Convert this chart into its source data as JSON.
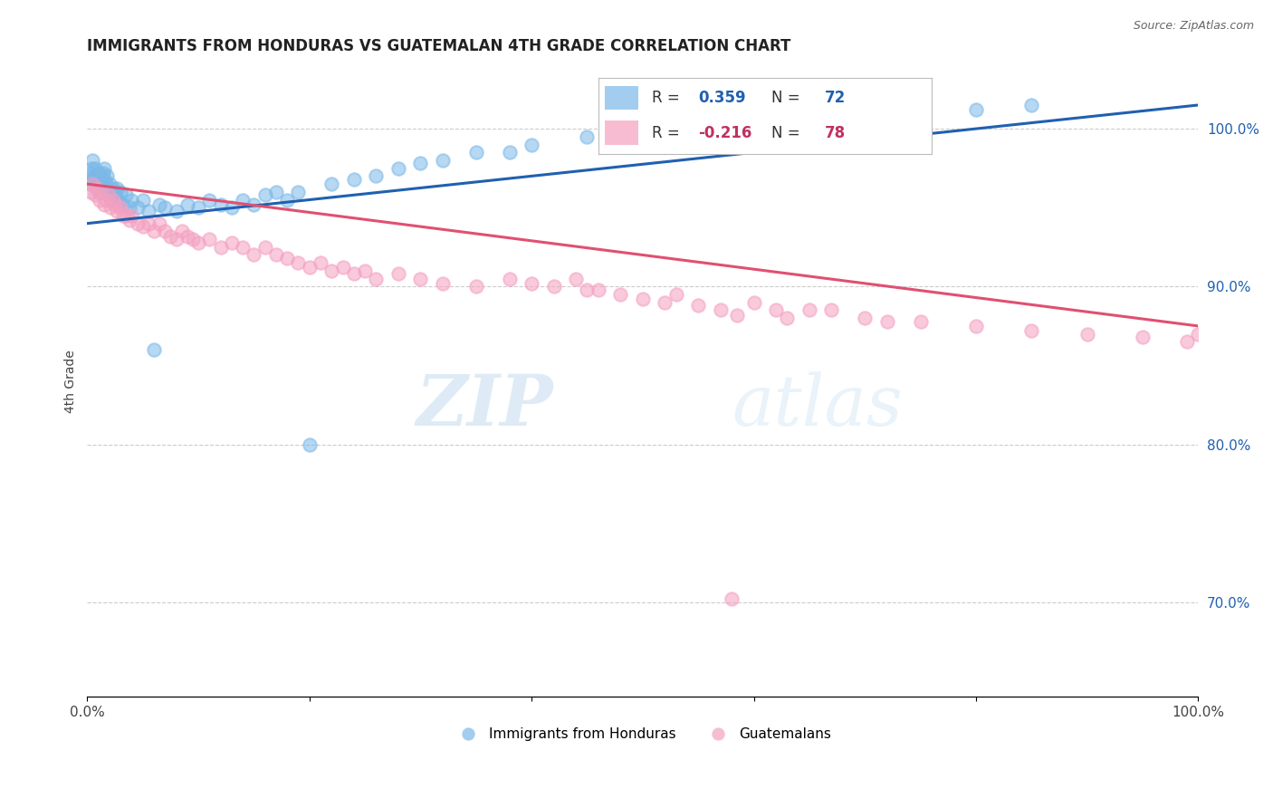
{
  "title": "IMMIGRANTS FROM HONDURAS VS GUATEMALAN 4TH GRADE CORRELATION CHART",
  "source": "Source: ZipAtlas.com",
  "ylabel": "4th Grade",
  "xlim": [
    0.0,
    100.0
  ],
  "ylim": [
    64.0,
    104.0
  ],
  "ytick_right_labels": [
    "70.0%",
    "80.0%",
    "90.0%",
    "100.0%"
  ],
  "ytick_right_values": [
    70.0,
    80.0,
    90.0,
    100.0
  ],
  "blue_R": 0.359,
  "blue_N": 72,
  "pink_R": -0.216,
  "pink_N": 78,
  "blue_color": "#7bb8e8",
  "pink_color": "#f4a0c0",
  "blue_line_color": "#2060b0",
  "pink_line_color": "#e05070",
  "blue_line_start_y": 94.0,
  "blue_line_end_y": 101.5,
  "pink_line_start_y": 96.5,
  "pink_line_end_y": 87.5,
  "legend_blue_label": "Immigrants from Honduras",
  "legend_pink_label": "Guatemalans",
  "blue_x": [
    0.2,
    0.3,
    0.4,
    0.5,
    0.5,
    0.6,
    0.7,
    0.8,
    0.9,
    1.0,
    1.0,
    1.1,
    1.2,
    1.3,
    1.4,
    1.5,
    1.5,
    1.6,
    1.7,
    1.8,
    1.9,
    2.0,
    2.1,
    2.2,
    2.3,
    2.4,
    2.5,
    2.6,
    2.7,
    2.8,
    3.0,
    3.2,
    3.5,
    3.8,
    4.0,
    4.5,
    5.0,
    5.5,
    6.0,
    6.5,
    7.0,
    8.0,
    9.0,
    10.0,
    11.0,
    12.0,
    13.0,
    14.0,
    15.0,
    16.0,
    17.0,
    18.0,
    19.0,
    20.0,
    22.0,
    24.0,
    26.0,
    28.0,
    30.0,
    32.0,
    35.0,
    38.0,
    40.0,
    45.0,
    50.0,
    55.0,
    60.0,
    65.0,
    70.0,
    75.0,
    80.0,
    85.0
  ],
  "blue_y": [
    96.5,
    97.2,
    97.5,
    98.0,
    96.8,
    97.0,
    97.5,
    96.5,
    97.0,
    97.2,
    96.0,
    96.8,
    97.0,
    96.5,
    97.2,
    96.8,
    97.5,
    96.2,
    96.5,
    97.0,
    95.8,
    96.5,
    96.0,
    95.5,
    96.2,
    95.8,
    96.0,
    95.5,
    96.2,
    95.5,
    96.0,
    95.2,
    95.8,
    95.0,
    95.5,
    95.0,
    95.5,
    94.8,
    86.0,
    95.2,
    95.0,
    94.8,
    95.2,
    95.0,
    95.5,
    95.2,
    95.0,
    95.5,
    95.2,
    95.8,
    96.0,
    95.5,
    96.0,
    80.0,
    96.5,
    96.8,
    97.0,
    97.5,
    97.8,
    98.0,
    98.5,
    98.5,
    99.0,
    99.5,
    99.8,
    100.0,
    100.2,
    100.5,
    100.8,
    101.0,
    101.2,
    101.5
  ],
  "pink_x": [
    0.3,
    0.5,
    0.7,
    0.9,
    1.1,
    1.3,
    1.5,
    1.7,
    1.9,
    2.1,
    2.3,
    2.5,
    2.7,
    3.0,
    3.2,
    3.5,
    3.8,
    4.0,
    4.5,
    5.0,
    5.5,
    6.0,
    6.5,
    7.0,
    7.5,
    8.0,
    8.5,
    9.0,
    9.5,
    10.0,
    11.0,
    12.0,
    13.0,
    14.0,
    15.0,
    16.0,
    17.0,
    18.0,
    19.0,
    20.0,
    21.0,
    22.0,
    23.0,
    24.0,
    25.0,
    26.0,
    28.0,
    30.0,
    32.0,
    35.0,
    38.0,
    40.0,
    45.0,
    48.0,
    50.0,
    52.0,
    55.0,
    58.0,
    60.0,
    62.0,
    65.0,
    70.0,
    75.0,
    80.0,
    85.0,
    90.0,
    95.0,
    99.0,
    100.0,
    42.0,
    44.0,
    46.0,
    53.0,
    57.0,
    63.0,
    67.0,
    72.0,
    58.5
  ],
  "pink_y": [
    96.0,
    96.5,
    95.8,
    96.2,
    95.5,
    96.0,
    95.2,
    95.5,
    95.8,
    95.0,
    95.5,
    95.2,
    94.8,
    95.0,
    94.5,
    94.5,
    94.2,
    94.5,
    94.0,
    93.8,
    94.0,
    93.5,
    94.0,
    93.5,
    93.2,
    93.0,
    93.5,
    93.2,
    93.0,
    92.8,
    93.0,
    92.5,
    92.8,
    92.5,
    92.0,
    92.5,
    92.0,
    91.8,
    91.5,
    91.2,
    91.5,
    91.0,
    91.2,
    90.8,
    91.0,
    90.5,
    90.8,
    90.5,
    90.2,
    90.0,
    90.5,
    90.2,
    89.8,
    89.5,
    89.2,
    89.0,
    88.8,
    70.2,
    89.0,
    88.5,
    88.5,
    88.0,
    87.8,
    87.5,
    87.2,
    87.0,
    86.8,
    86.5,
    87.0,
    90.0,
    90.5,
    89.8,
    89.5,
    88.5,
    88.0,
    88.5,
    87.8,
    88.2
  ],
  "watermark_zip": "ZIP",
  "watermark_atlas": "atlas",
  "title_color": "#222222",
  "source_color": "#666666",
  "label_color": "#2060b0",
  "pink_label_color": "#c03060",
  "grid_color": "#cccccc"
}
